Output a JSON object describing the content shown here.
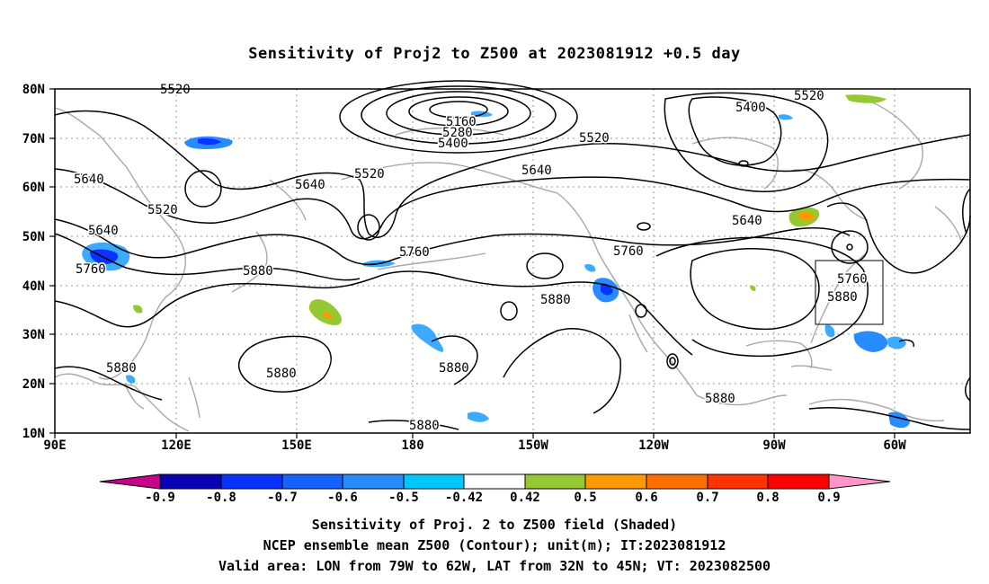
{
  "title": "Sensitivity of Proj2 to Z500 at 2023081912 +0.5 day",
  "map": {
    "lat_labels": [
      "80N",
      "70N",
      "60N",
      "50N",
      "40N",
      "30N",
      "20N",
      "10N"
    ],
    "lon_labels": [
      "90E",
      "120E",
      "150E",
      "180",
      "150W",
      "120W",
      "90W",
      "60W"
    ],
    "extent": {
      "lon_min": 90,
      "lon_max": 317,
      "lat_min": 10,
      "lat_max": 80
    },
    "grid": "dotted",
    "contour_labels": [
      "5520",
      "5160",
      "5280",
      "5400",
      "5520",
      "5400",
      "5520",
      "5640",
      "5520",
      "5640",
      "5640",
      "5640",
      "5520",
      "5640",
      "5760",
      "5760",
      "5880",
      "5760",
      "5760",
      "5880",
      "5880",
      "5880",
      "5880",
      "5880",
      "5880",
      "5880"
    ],
    "valid_box": {
      "lon": [
        281,
        298
      ],
      "lat": [
        32,
        45
      ]
    }
  },
  "colorbar": {
    "tick_labels": [
      "-0.9",
      "-0.8",
      "-0.7",
      "-0.6",
      "-0.5",
      "-0.42",
      "0.42",
      "0.5",
      "0.6",
      "0.7",
      "0.8",
      "0.9"
    ],
    "colors": [
      "#c8008c",
      "#0a00b4",
      "#0a32ff",
      "#1463ff",
      "#288cff",
      "#3caaff",
      "#00c8ff",
      "#ffffff",
      "#96c832",
      "#ff9b00",
      "#ff6e00",
      "#ff3200",
      "#ff0000",
      "#ff96c8"
    ]
  },
  "captions": {
    "line1": "Sensitivity of Proj. 2 to Z500 field (Shaded)",
    "line2": "NCEP ensemble mean Z500 (Contour); unit(m); IT:2023081912",
    "line3": "Valid area: LON from 79W to 62W, LAT from 32N to 45N; VT: 2023082500"
  }
}
